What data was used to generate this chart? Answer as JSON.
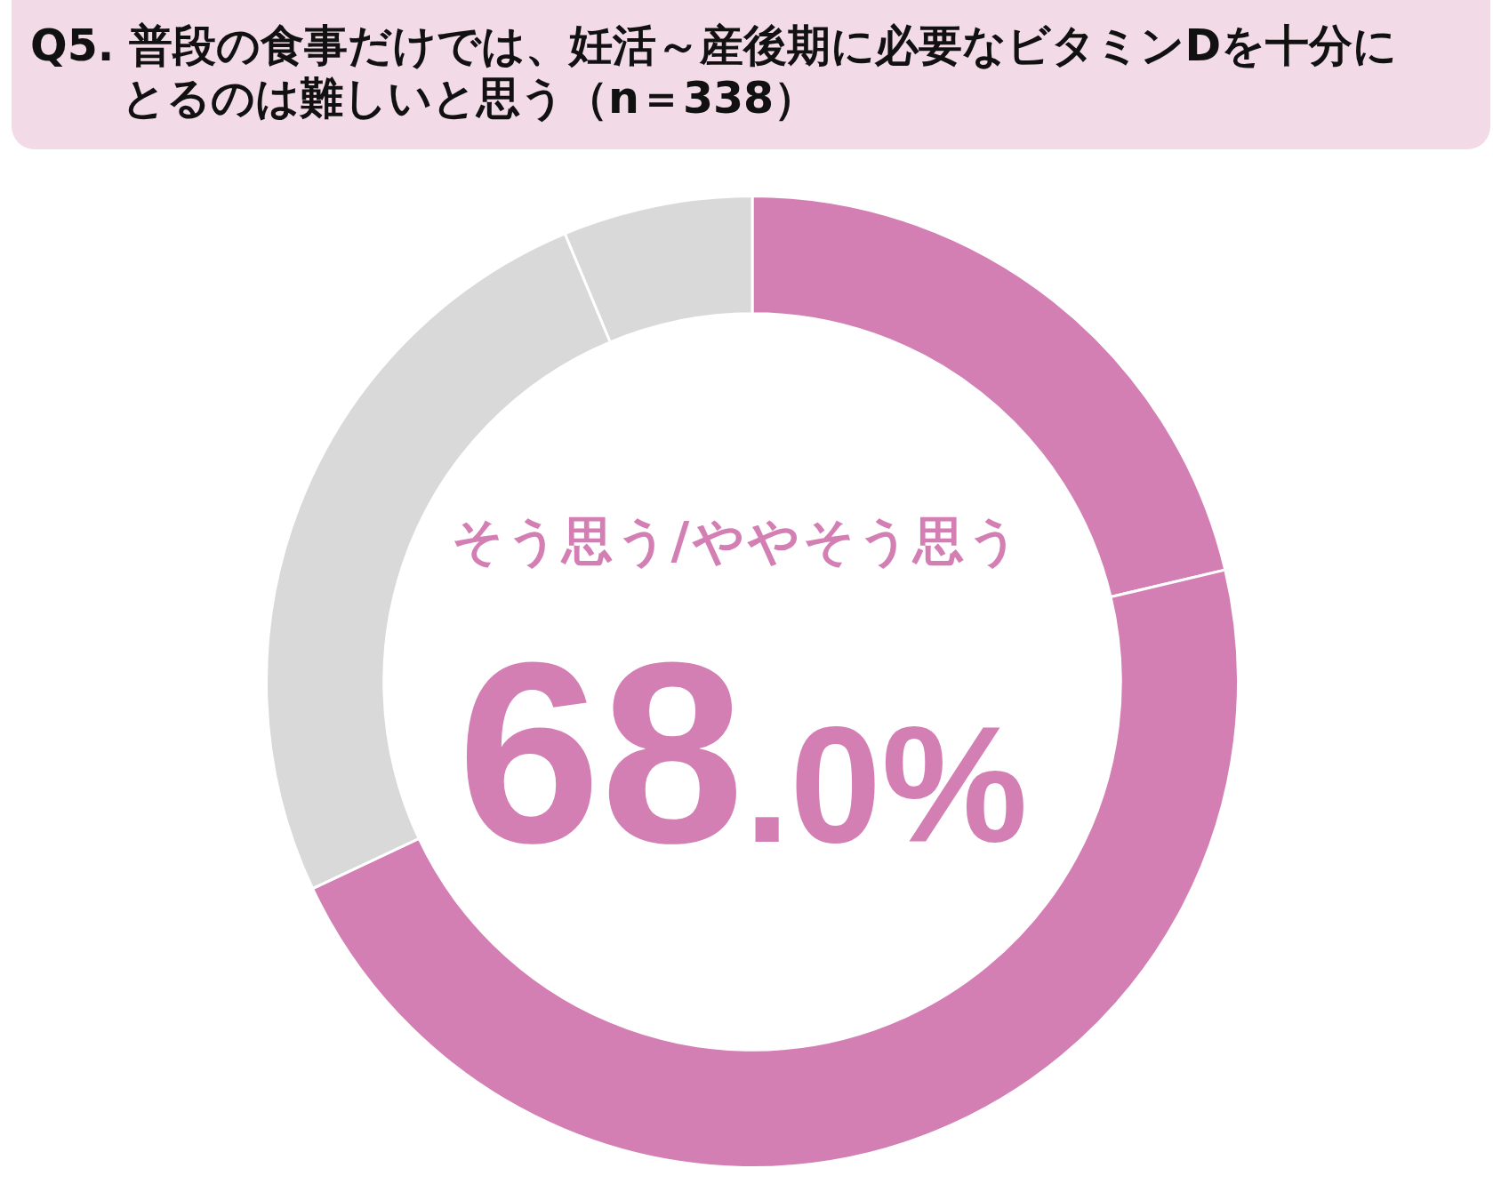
{
  "chart_data": {
    "type": "donut",
    "title": "Q5. 普段の食事だけでは、妊活～産後期に必要なビタミンDを十分にとるのは難しいと思う（n＝338）",
    "categories": [
      null,
      null,
      null,
      null
    ],
    "values": [
      21.3,
      46.7,
      25.7,
      6.3
    ],
    "colors": [
      "#d37fb4",
      "#d37fb4",
      "#d9d9d9",
      "#d9d9d9"
    ],
    "annotations": [
      "そう思う/ややそう思う",
      "68.0%"
    ]
  }
}
